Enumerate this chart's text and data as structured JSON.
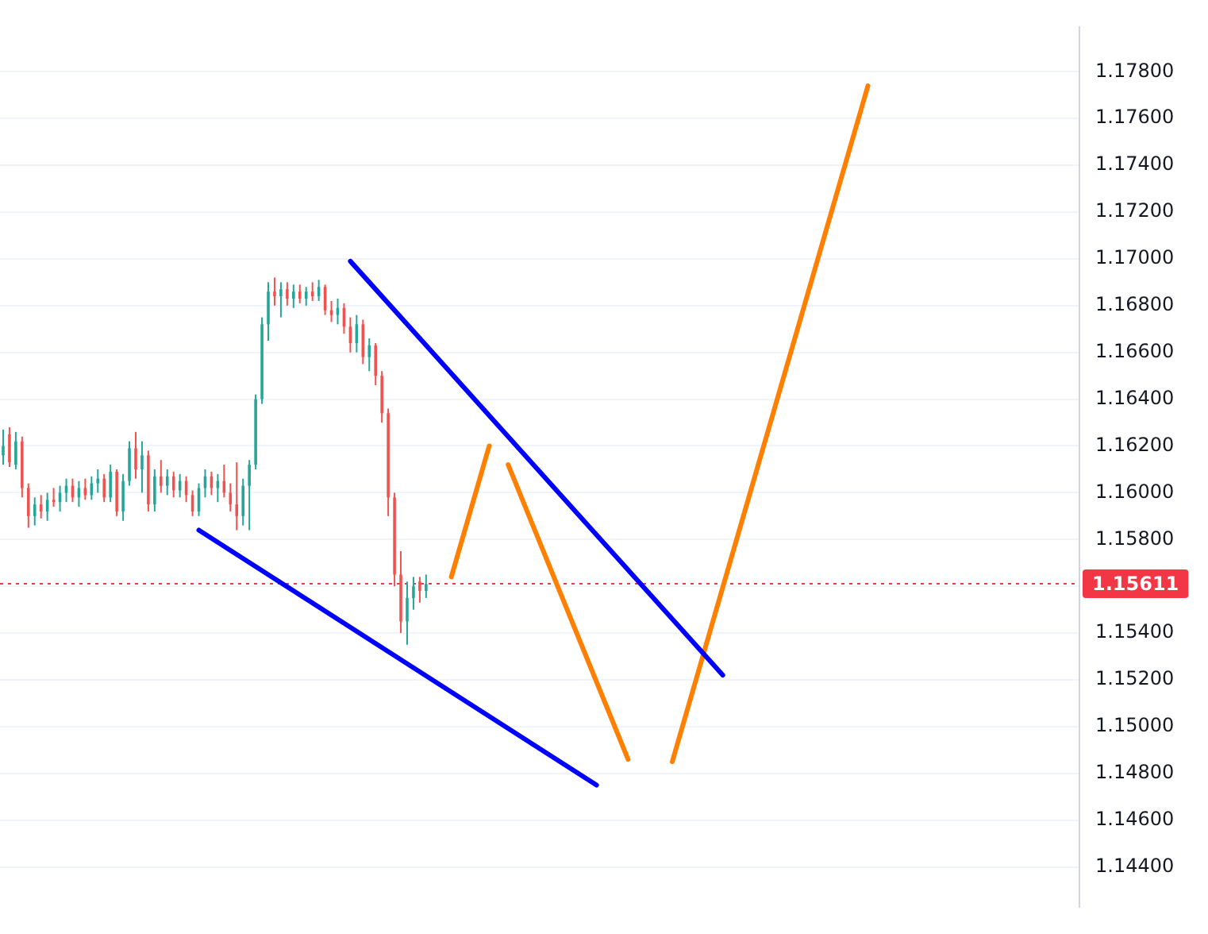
{
  "chart_data": {
    "type": "candlestick",
    "categories": [
      null,
      null,
      null,
      null,
      null,
      null,
      null,
      null,
      null,
      null,
      null,
      null,
      null,
      null,
      null,
      null,
      null,
      null,
      null,
      null,
      null,
      null,
      null,
      null,
      null,
      null,
      null,
      null,
      null,
      null,
      null,
      null,
      null,
      null,
      null,
      null,
      null,
      null,
      null,
      null,
      null,
      null,
      null,
      null,
      null,
      null,
      null,
      null,
      null,
      null,
      null,
      null,
      null,
      null,
      null,
      null,
      null,
      null,
      null,
      null,
      null,
      null,
      null,
      null,
      null,
      null,
      null,
      null,
      null,
      null,
      null,
      null,
      null,
      null,
      null,
      null,
      null,
      null,
      null,
      null,
      null,
      null,
      null,
      null,
      null,
      null,
      null,
      null,
      null,
      null,
      null,
      null,
      null,
      null,
      null,
      null,
      null,
      null,
      null,
      null,
      null,
      null,
      null,
      null,
      null,
      null,
      null,
      null,
      null,
      null,
      null,
      null,
      null,
      null,
      null,
      null,
      null,
      null,
      null,
      null,
      null,
      null,
      null,
      null,
      null,
      null,
      null,
      null,
      null,
      null,
      null,
      null,
      null,
      null,
      null,
      null,
      null,
      null,
      null,
      null,
      null,
      null,
      null,
      null,
      null,
      null,
      null,
      null,
      null,
      null,
      null,
      null,
      null,
      null,
      null,
      null,
      null,
      null,
      null,
      null,
      null,
      null,
      null,
      null,
      null,
      null,
      null,
      null,
      null,
      null,
      null
    ],
    "ohlc": [
      [
        1.1616,
        1.1627,
        1.1612,
        1.162
      ],
      [
        1.1625,
        1.1628,
        1.1611,
        1.1613
      ],
      [
        1.1612,
        1.1626,
        1.161,
        1.1622
      ],
      [
        1.1622,
        1.1624,
        1.1598,
        1.1602
      ],
      [
        1.1602,
        1.1604,
        1.1585,
        1.159
      ],
      [
        1.159,
        1.1598,
        1.1586,
        1.1595
      ],
      [
        1.1595,
        1.1599,
        1.1589,
        1.1592
      ],
      [
        1.1592,
        1.16,
        1.1588,
        1.1597
      ],
      [
        1.1597,
        1.1602,
        1.1594,
        1.1596
      ],
      [
        1.1596,
        1.1603,
        1.1592,
        1.16
      ],
      [
        1.16,
        1.1606,
        1.1596,
        1.1603
      ],
      [
        1.1603,
        1.1606,
        1.1596,
        1.1598
      ],
      [
        1.1598,
        1.1605,
        1.1594,
        1.1602
      ],
      [
        1.1602,
        1.1606,
        1.1597,
        1.1599
      ],
      [
        1.1599,
        1.1607,
        1.1597,
        1.1604
      ],
      [
        1.1604,
        1.161,
        1.16,
        1.1606
      ],
      [
        1.1606,
        1.1608,
        1.1596,
        1.1598
      ],
      [
        1.1598,
        1.1612,
        1.1596,
        1.1609
      ],
      [
        1.1609,
        1.161,
        1.159,
        1.1592
      ],
      [
        1.1592,
        1.1608,
        1.1588,
        1.1605
      ],
      [
        1.1605,
        1.1622,
        1.1603,
        1.1619
      ],
      [
        1.1619,
        1.1626,
        1.1606,
        1.161
      ],
      [
        1.161,
        1.1622,
        1.16,
        1.1616
      ],
      [
        1.1616,
        1.1618,
        1.1592,
        1.1595
      ],
      [
        1.1595,
        1.161,
        1.1592,
        1.1607
      ],
      [
        1.1607,
        1.1614,
        1.16,
        1.1603
      ],
      [
        1.1603,
        1.161,
        1.1599,
        1.1607
      ],
      [
        1.1607,
        1.1609,
        1.1598,
        1.1601
      ],
      [
        1.1601,
        1.1608,
        1.1598,
        1.1605
      ],
      [
        1.1605,
        1.1607,
        1.1596,
        1.1599
      ],
      [
        1.1599,
        1.1601,
        1.159,
        1.1592
      ],
      [
        1.1592,
        1.1604,
        1.159,
        1.1602
      ],
      [
        1.1602,
        1.161,
        1.1598,
        1.1607
      ],
      [
        1.1607,
        1.1609,
        1.1599,
        1.1602
      ],
      [
        1.1602,
        1.1608,
        1.1596,
        1.1605
      ],
      [
        1.1605,
        1.1612,
        1.1598,
        1.16
      ],
      [
        1.16,
        1.1604,
        1.1592,
        1.1595
      ],
      [
        1.1595,
        1.1613,
        1.1584,
        1.159
      ],
      [
        1.159,
        1.1606,
        1.1586,
        1.1603
      ],
      [
        1.1603,
        1.1614,
        1.1584,
        1.1612
      ],
      [
        1.1612,
        1.1642,
        1.161,
        1.164
      ],
      [
        1.164,
        1.1675,
        1.1638,
        1.1672
      ],
      [
        1.1672,
        1.169,
        1.1665,
        1.1686
      ],
      [
        1.1686,
        1.1692,
        1.168,
        1.1684
      ],
      [
        1.1684,
        1.169,
        1.1675,
        1.1687
      ],
      [
        1.1687,
        1.169,
        1.168,
        1.1683
      ],
      [
        1.1683,
        1.1689,
        1.1679,
        1.1686
      ],
      [
        1.1686,
        1.1689,
        1.1681,
        1.1683
      ],
      [
        1.1683,
        1.1688,
        1.168,
        1.1686
      ],
      [
        1.1686,
        1.169,
        1.1682,
        1.1684
      ],
      [
        1.1684,
        1.1691,
        1.1682,
        1.1688
      ],
      [
        1.1688,
        1.1689,
        1.1676,
        1.1678
      ],
      [
        1.1678,
        1.1682,
        1.1673,
        1.1676
      ],
      [
        1.1676,
        1.1683,
        1.1672,
        1.1679
      ],
      [
        1.1679,
        1.1681,
        1.1668,
        1.1671
      ],
      [
        1.1671,
        1.1675,
        1.166,
        1.1664
      ],
      [
        1.1664,
        1.1676,
        1.166,
        1.1672
      ],
      [
        1.1672,
        1.1674,
        1.1655,
        1.1658
      ],
      [
        1.1658,
        1.1666,
        1.1652,
        1.1663
      ],
      [
        1.1663,
        1.1664,
        1.1646,
        1.165
      ],
      [
        1.165,
        1.1652,
        1.163,
        1.1634
      ],
      [
        1.1634,
        1.1636,
        1.159,
        1.1598
      ],
      [
        1.1598,
        1.16,
        1.156,
        1.1565
      ],
      [
        1.1565,
        1.1575,
        1.154,
        1.1545
      ],
      [
        1.1545,
        1.1562,
        1.1535,
        1.1555
      ],
      [
        1.1555,
        1.1564,
        1.155,
        1.156
      ],
      [
        1.1562,
        1.1564,
        1.1553,
        1.1558
      ],
      [
        1.1558,
        1.1565,
        1.1555,
        1.1561
      ],
      null,
      null,
      null,
      null,
      null,
      null,
      null,
      null,
      null,
      null,
      null,
      null,
      null,
      null,
      null,
      null,
      null,
      null,
      null,
      null,
      null,
      null,
      null,
      null,
      null,
      null,
      null,
      null,
      null,
      null,
      null,
      null,
      null,
      null,
      null,
      null,
      null,
      null,
      null,
      null,
      null,
      null,
      null,
      null,
      null,
      null,
      null,
      null,
      null,
      null,
      null,
      null,
      null,
      null,
      null,
      null,
      null,
      null,
      null,
      null,
      null,
      null,
      null,
      null,
      null,
      null,
      null,
      null,
      null,
      null,
      null,
      null,
      null,
      null,
      null,
      null,
      null,
      null,
      null,
      null,
      null,
      null,
      null,
      null,
      null,
      null,
      null,
      null,
      null,
      null,
      null,
      null,
      null,
      null,
      null,
      null,
      null,
      null,
      null,
      null,
      null,
      null,
      null
    ],
    "colors": [
      "#26a69a",
      "#ef5350",
      "#26a69a",
      "#ef5350",
      "#ef5350",
      "#26a69a",
      "#ef5350",
      "#26a69a",
      "#ef5350",
      "#26a69a",
      "#26a69a",
      "#ef5350",
      "#26a69a",
      "#ef5350",
      "#26a69a",
      "#26a69a",
      "#ef5350",
      "#26a69a",
      "#ef5350",
      "#26a69a",
      "#26a69a",
      "#ef5350",
      "#26a69a",
      "#ef5350",
      "#26a69a",
      "#ef5350",
      "#26a69a",
      "#ef5350",
      "#26a69a",
      "#ef5350",
      "#ef5350",
      "#26a69a",
      "#26a69a",
      "#ef5350",
      "#26a69a",
      "#ef5350",
      "#ef5350",
      "#ef5350",
      "#26a69a",
      "#26a69a",
      "#26a69a",
      "#26a69a",
      "#26a69a",
      "#ef5350",
      "#26a69a",
      "#ef5350",
      "#26a69a",
      "#ef5350",
      "#26a69a",
      "#ef5350",
      "#26a69a",
      "#ef5350",
      "#ef5350",
      "#26a69a",
      "#ef5350",
      "#ef5350",
      "#26a69a",
      "#ef5350",
      "#26a69a",
      "#ef5350",
      "#ef5350",
      "#ef5350",
      "#ef5350",
      "#ef5350",
      "#26a69a",
      "#26a69a",
      "#ef5350",
      "#26a69a",
      null,
      null,
      null,
      null,
      null,
      null,
      null,
      null,
      null,
      null,
      null,
      null,
      null,
      null,
      null,
      null,
      null,
      null,
      null,
      null,
      null,
      null,
      null,
      null,
      null,
      null,
      null,
      null,
      null,
      null,
      null,
      null,
      null,
      null,
      null,
      null,
      null,
      null,
      null,
      null,
      null,
      null,
      null,
      null,
      null,
      null,
      null,
      null,
      null,
      null,
      null,
      null,
      null,
      null,
      null,
      null,
      null,
      null,
      null,
      null,
      null,
      null,
      null,
      null,
      null,
      null,
      null,
      null,
      null,
      null,
      null,
      null,
      null,
      null,
      null,
      null,
      null,
      null,
      null,
      null,
      null,
      null,
      null,
      null,
      null,
      null,
      null,
      null,
      null,
      null,
      null,
      null,
      null,
      null,
      null,
      null,
      null,
      null,
      null,
      null,
      null,
      null,
      null
    ],
    "series": [
      {
        "type": "line",
        "color": "#0000ff",
        "values": [
          null,
          null,
          null,
          null,
          null,
          null,
          null,
          null,
          null,
          null,
          null,
          null,
          null,
          null,
          null,
          null,
          null,
          null,
          null,
          null,
          null,
          null,
          null,
          null,
          null,
          null,
          null,
          null,
          null,
          null,
          null,
          1.1584,
          null,
          null,
          null,
          null,
          null,
          null,
          null,
          null,
          null,
          null,
          null,
          null,
          null,
          null,
          null,
          null,
          null,
          null,
          null,
          null,
          null,
          null,
          null,
          null,
          null,
          null,
          null,
          null,
          null,
          null,
          null,
          null,
          null,
          null,
          null,
          null,
          null,
          null,
          null,
          null,
          null,
          null,
          null,
          null,
          null,
          null,
          null,
          null,
          null,
          null,
          null,
          null,
          null,
          null,
          null,
          null,
          null,
          null,
          null,
          null,
          null,
          null,
          1.1475,
          null,
          null,
          null,
          null,
          null,
          null,
          null,
          null,
          null,
          null,
          null,
          null,
          null,
          null,
          null,
          null,
          null,
          null,
          null,
          null,
          null,
          null,
          null,
          null,
          null,
          null,
          null,
          null,
          null,
          null,
          null,
          null,
          null,
          null,
          null,
          null,
          null,
          null,
          null,
          null,
          null,
          null,
          null,
          null,
          null,
          null,
          null,
          null,
          null,
          null,
          null,
          null,
          null,
          null,
          null,
          null,
          null,
          null,
          null,
          null,
          null,
          null,
          null,
          null,
          null,
          null,
          null,
          null,
          null,
          null,
          null,
          null,
          null,
          null,
          null,
          null
        ]
      },
      {
        "type": "line",
        "color": "#0000ff",
        "values": [
          null,
          null,
          null,
          null,
          null,
          null,
          null,
          null,
          null,
          null,
          null,
          null,
          null,
          null,
          null,
          null,
          null,
          null,
          null,
          null,
          null,
          null,
          null,
          null,
          null,
          null,
          null,
          null,
          null,
          null,
          null,
          null,
          null,
          null,
          null,
          null,
          null,
          null,
          null,
          null,
          null,
          null,
          null,
          null,
          null,
          null,
          null,
          null,
          null,
          null,
          null,
          null,
          null,
          null,
          null,
          1.1699,
          null,
          null,
          null,
          null,
          null,
          null,
          null,
          null,
          null,
          null,
          null,
          null,
          null,
          null,
          null,
          null,
          null,
          null,
          null,
          null,
          null,
          null,
          null,
          null,
          null,
          null,
          null,
          null,
          null,
          null,
          null,
          null,
          null,
          null,
          null,
          null,
          null,
          null,
          null,
          null,
          null,
          null,
          null,
          null,
          null,
          null,
          null,
          null,
          null,
          null,
          null,
          null,
          null,
          null,
          null,
          null,
          null,
          null,
          1.1522,
          null,
          null,
          null,
          null,
          null,
          null,
          null,
          null,
          null,
          null,
          null,
          null,
          null,
          null,
          null,
          null,
          null,
          null,
          null,
          null,
          null,
          null,
          null,
          null,
          null,
          null,
          null,
          null,
          null,
          null,
          null,
          null,
          null,
          null,
          null,
          null,
          null,
          null,
          null,
          null,
          null,
          null,
          null,
          null,
          null,
          null,
          null,
          null,
          null,
          null,
          null,
          null,
          null,
          null,
          null,
          null
        ]
      },
      {
        "type": "line",
        "color": "#ff8000",
        "values": [
          null,
          null,
          null,
          null,
          null,
          null,
          null,
          null,
          null,
          null,
          null,
          null,
          null,
          null,
          null,
          null,
          null,
          null,
          null,
          null,
          null,
          null,
          null,
          null,
          null,
          null,
          null,
          null,
          null,
          null,
          null,
          null,
          null,
          null,
          null,
          null,
          null,
          null,
          null,
          null,
          null,
          null,
          null,
          null,
          null,
          null,
          null,
          null,
          null,
          null,
          null,
          null,
          null,
          null,
          null,
          null,
          null,
          null,
          null,
          null,
          null,
          null,
          null,
          null,
          null,
          null,
          null,
          null,
          null,
          null,
          null,
          1.1564,
          null,
          null,
          null,
          null,
          null,
          1.162,
          null,
          null,
          null,
          null,
          null,
          null,
          null,
          null,
          null,
          null,
          null,
          null,
          null,
          null,
          null,
          null,
          null,
          null,
          null,
          null,
          null,
          null,
          null,
          null,
          null,
          null,
          null,
          null,
          null,
          null,
          null,
          null,
          null,
          null,
          null,
          null,
          null,
          null,
          null,
          null,
          null,
          null,
          null,
          null,
          null,
          null,
          null,
          null,
          null,
          null,
          null,
          null,
          null,
          null,
          null,
          null,
          null,
          null,
          null,
          null,
          null,
          null,
          null,
          null,
          null,
          null,
          null,
          null,
          null,
          null,
          null,
          null,
          null,
          null,
          null,
          null,
          null,
          null,
          null,
          null,
          null,
          null,
          null,
          null,
          null,
          null,
          null,
          null,
          null,
          null,
          null,
          null,
          null
        ]
      },
      {
        "type": "line",
        "color": "#ff8000",
        "values": [
          null,
          null,
          null,
          null,
          null,
          null,
          null,
          null,
          null,
          null,
          null,
          null,
          null,
          null,
          null,
          null,
          null,
          null,
          null,
          null,
          null,
          null,
          null,
          null,
          null,
          null,
          null,
          null,
          null,
          null,
          null,
          null,
          null,
          null,
          null,
          null,
          null,
          null,
          null,
          null,
          null,
          null,
          null,
          null,
          null,
          null,
          null,
          null,
          null,
          null,
          null,
          null,
          null,
          null,
          null,
          null,
          null,
          null,
          null,
          null,
          null,
          null,
          null,
          null,
          null,
          null,
          null,
          null,
          null,
          null,
          null,
          null,
          null,
          null,
          null,
          null,
          null,
          null,
          null,
          null,
          1.1612,
          null,
          null,
          null,
          null,
          null,
          null,
          null,
          null,
          null,
          null,
          null,
          null,
          null,
          null,
          null,
          null,
          null,
          null,
          1.1486,
          null,
          null,
          null,
          null,
          null,
          null,
          null,
          null,
          null,
          null,
          null,
          null,
          null,
          null,
          null,
          null,
          null,
          null,
          null,
          null,
          null,
          null,
          null,
          null,
          null,
          null,
          null,
          null,
          null,
          null,
          null,
          null,
          null,
          null,
          null,
          null,
          null,
          null,
          null,
          null,
          null,
          null,
          null,
          null,
          null,
          null,
          null,
          null,
          null,
          null,
          null,
          null,
          null,
          null,
          null,
          null,
          null,
          null,
          null,
          null,
          null,
          null,
          null,
          null,
          null,
          null,
          null,
          null,
          null,
          null,
          null
        ]
      },
      {
        "type": "line",
        "color": "#ff8000",
        "values": [
          null,
          null,
          null,
          null,
          null,
          null,
          null,
          null,
          null,
          null,
          null,
          null,
          null,
          null,
          null,
          null,
          null,
          null,
          null,
          null,
          null,
          null,
          null,
          null,
          null,
          null,
          null,
          null,
          null,
          null,
          null,
          null,
          null,
          null,
          null,
          null,
          null,
          null,
          null,
          null,
          null,
          null,
          null,
          null,
          null,
          null,
          null,
          null,
          null,
          null,
          null,
          null,
          null,
          null,
          null,
          null,
          null,
          null,
          null,
          null,
          null,
          null,
          null,
          null,
          null,
          null,
          null,
          null,
          null,
          null,
          null,
          null,
          null,
          null,
          null,
          null,
          null,
          null,
          null,
          null,
          null,
          null,
          null,
          null,
          null,
          null,
          null,
          null,
          null,
          null,
          null,
          null,
          null,
          null,
          null,
          null,
          null,
          null,
          null,
          null,
          null,
          null,
          null,
          null,
          null,
          null,
          1.1485,
          null,
          null,
          null,
          null,
          null,
          null,
          null,
          null,
          null,
          null,
          null,
          null,
          null,
          null,
          null,
          null,
          null,
          null,
          null,
          null,
          null,
          null,
          null,
          null,
          null,
          null,
          null,
          null,
          null,
          null,
          1.1774,
          null,
          null,
          null,
          null,
          null,
          null,
          null,
          null,
          null,
          null,
          null,
          null,
          null,
          null,
          null,
          null,
          null,
          null,
          null,
          null,
          null,
          null,
          null,
          null,
          null,
          null,
          null,
          null,
          null,
          null,
          null,
          null,
          null
        ]
      }
    ],
    "ylim": [
      1.1423,
      1.1799
    ],
    "yticks": [
      {
        "value": 1.144,
        "label": "1.14400"
      },
      {
        "value": 1.146,
        "label": "1.14600"
      },
      {
        "value": 1.148,
        "label": "1.14800"
      },
      {
        "value": 1.15,
        "label": "1.15000"
      },
      {
        "value": 1.152,
        "label": "1.15200"
      },
      {
        "value": 1.154,
        "label": "1.15400"
      },
      {
        "value": 1.156,
        "label": null
      },
      {
        "value": 1.158,
        "label": "1.15800"
      },
      {
        "value": 1.16,
        "label": "1.16000"
      },
      {
        "value": 1.162,
        "label": "1.16200"
      },
      {
        "value": 1.164,
        "label": "1.16400"
      },
      {
        "value": 1.166,
        "label": "1.16600"
      },
      {
        "value": 1.168,
        "label": "1.16800"
      },
      {
        "value": 1.17,
        "label": "1.17000"
      },
      {
        "value": 1.172,
        "label": "1.17200"
      },
      {
        "value": 1.174,
        "label": "1.17400"
      },
      {
        "value": 1.176,
        "label": "1.17600"
      },
      {
        "value": 1.178,
        "label": "1.17800"
      }
    ],
    "ref_lines": [
      {
        "axis": "y",
        "value": 1.15611,
        "label": "1.15611",
        "color": "#f23645",
        "line_style": "dotted"
      }
    ],
    "grid": "y",
    "legend": false,
    "tick_labels": "y",
    "marker": "none",
    "line_style": "solid"
  }
}
